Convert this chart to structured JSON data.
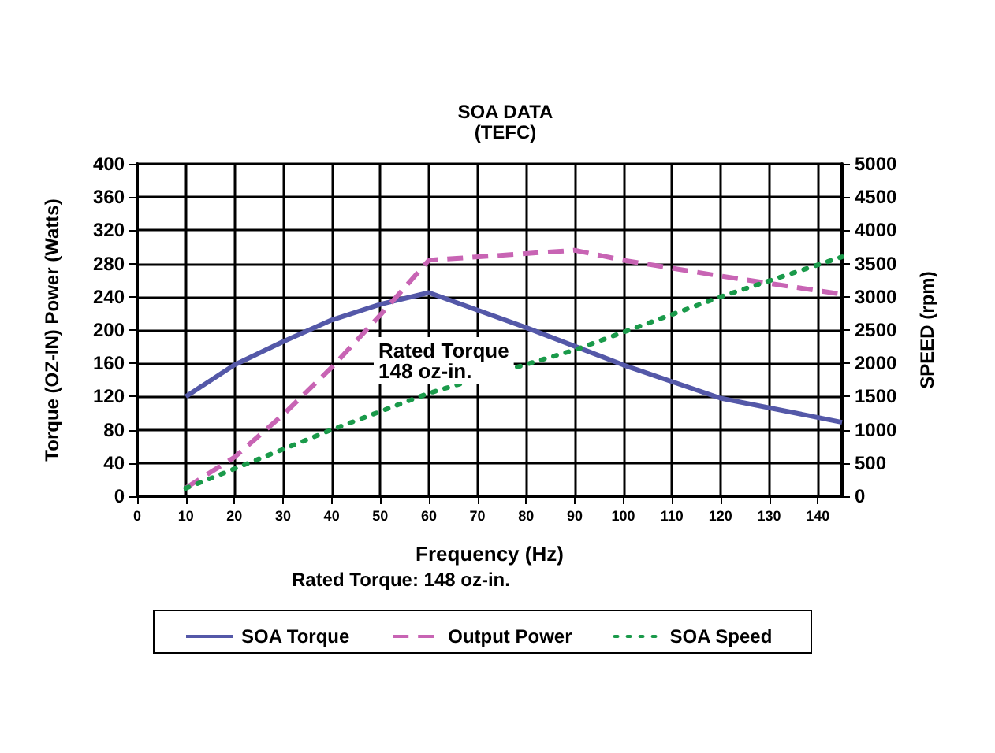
{
  "chart_data": {
    "type": "line",
    "title": "SOA DATA",
    "subtitle": "(TEFC)",
    "xlabel": "Frequency (Hz)",
    "ylabel": "Torque (OZ-IN) Power (Watts)",
    "y2label": "SPEED (rpm)",
    "annotations": [
      "Rated Torque\n148 oz-in.",
      "Rated Torque: 148 oz-in."
    ],
    "xlim": [
      0,
      145
    ],
    "xticks": [
      0,
      10,
      20,
      30,
      40,
      50,
      60,
      70,
      80,
      90,
      100,
      110,
      120,
      130,
      140
    ],
    "ylim": [
      0,
      400
    ],
    "yticks": [
      0,
      40,
      80,
      120,
      160,
      200,
      240,
      280,
      320,
      360,
      400
    ],
    "y2lim": [
      0,
      5000
    ],
    "y2ticks": [
      0,
      500,
      1000,
      1500,
      2000,
      2500,
      3000,
      3500,
      4000,
      4500,
      5000
    ],
    "grid": true,
    "legend": "bottom",
    "series": [
      {
        "name": "SOA Torque",
        "color": "#5458a8",
        "line_style": "solid",
        "x": [
          10,
          20,
          30,
          40,
          50,
          60,
          80,
          100,
          120,
          145
        ],
        "values": [
          120,
          158,
          186,
          212,
          231,
          245,
          203,
          158,
          118,
          89
        ]
      },
      {
        "name": "Output Power",
        "color": "#c864b4",
        "line_style": "dashed",
        "x": [
          10,
          20,
          30,
          40,
          50,
          60,
          90,
          100,
          120,
          145
        ],
        "values": [
          10,
          47,
          98,
          155,
          218,
          284,
          296,
          284,
          265,
          243
        ]
      },
      {
        "name": "SOA Speed",
        "color": "#1a9a4a",
        "line_style": "dotted",
        "axis": "y2",
        "x": [
          10,
          40,
          60,
          90,
          120,
          145
        ],
        "values": [
          120,
          1000,
          1550,
          2200,
          3000,
          3600
        ]
      }
    ]
  }
}
